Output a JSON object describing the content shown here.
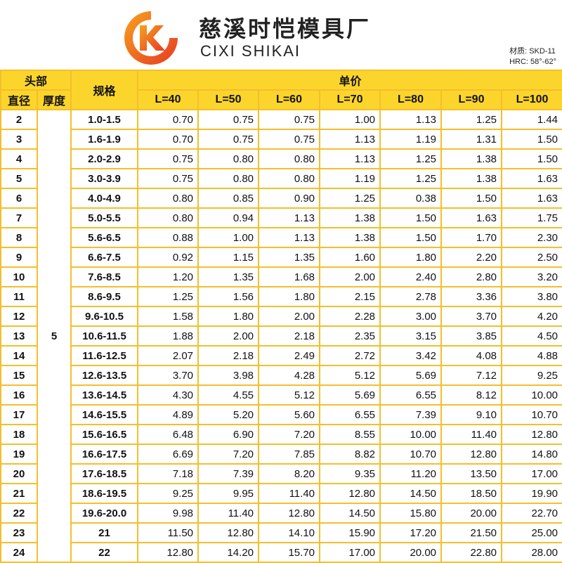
{
  "company": {
    "name_cn": "慈溪时恺模具厂",
    "name_en": "CIXI SHIKAI",
    "logo_letter": "K",
    "brand_orange": "#f28a1c",
    "brand_red": "#e63a23"
  },
  "specs": {
    "material": "材质: SKD-11",
    "hardness": "HRC: 58°-62°"
  },
  "table": {
    "header_group_head": "头部",
    "header_diameter": "直径",
    "header_thickness": "厚度",
    "header_spec": "规格",
    "header_price": "单价",
    "lengths": [
      "L=40",
      "L=50",
      "L=60",
      "L=70",
      "L=80",
      "L=90",
      "L=100"
    ],
    "thickness_value": "5",
    "rows": [
      {
        "dia": "2",
        "spec": "1.0-1.5",
        "prices": [
          "0.70",
          "0.75",
          "0.75",
          "1.00",
          "1.13",
          "1.25",
          "1.44"
        ]
      },
      {
        "dia": "3",
        "spec": "1.6-1.9",
        "prices": [
          "0.70",
          "0.75",
          "0.75",
          "1.13",
          "1.19",
          "1.31",
          "1.50"
        ]
      },
      {
        "dia": "4",
        "spec": "2.0-2.9",
        "prices": [
          "0.75",
          "0.80",
          "0.80",
          "1.13",
          "1.25",
          "1.38",
          "1.50"
        ]
      },
      {
        "dia": "5",
        "spec": "3.0-3.9",
        "prices": [
          "0.75",
          "0.80",
          "0.80",
          "1.19",
          "1.25",
          "1.38",
          "1.63"
        ]
      },
      {
        "dia": "6",
        "spec": "4.0-4.9",
        "prices": [
          "0.80",
          "0.85",
          "0.90",
          "1.25",
          "0.38",
          "1.50",
          "1.63"
        ]
      },
      {
        "dia": "7",
        "spec": "5.0-5.5",
        "prices": [
          "0.80",
          "0.94",
          "1.13",
          "1.38",
          "1.50",
          "1.63",
          "1.75"
        ]
      },
      {
        "dia": "8",
        "spec": "5.6-6.5",
        "prices": [
          "0.88",
          "1.00",
          "1.13",
          "1.38",
          "1.50",
          "1.70",
          "2.30"
        ]
      },
      {
        "dia": "9",
        "spec": "6.6-7.5",
        "prices": [
          "0.92",
          "1.15",
          "1.35",
          "1.60",
          "1.80",
          "2.20",
          "2.50"
        ]
      },
      {
        "dia": "10",
        "spec": "7.6-8.5",
        "prices": [
          "1.20",
          "1.35",
          "1.68",
          "2.00",
          "2.40",
          "2.80",
          "3.20"
        ]
      },
      {
        "dia": "11",
        "spec": "8.6-9.5",
        "prices": [
          "1.25",
          "1.56",
          "1.80",
          "2.15",
          "2.78",
          "3.36",
          "3.80"
        ]
      },
      {
        "dia": "12",
        "spec": "9.6-10.5",
        "prices": [
          "1.58",
          "1.80",
          "2.00",
          "2.28",
          "3.00",
          "3.70",
          "4.20"
        ]
      },
      {
        "dia": "13",
        "spec": "10.6-11.5",
        "prices": [
          "1.88",
          "2.00",
          "2.18",
          "2.35",
          "3.15",
          "3.85",
          "4.50"
        ]
      },
      {
        "dia": "14",
        "spec": "11.6-12.5",
        "prices": [
          "2.07",
          "2.18",
          "2.49",
          "2.72",
          "3.42",
          "4.08",
          "4.88"
        ]
      },
      {
        "dia": "15",
        "spec": "12.6-13.5",
        "prices": [
          "3.70",
          "3.98",
          "4.28",
          "5.12",
          "5.69",
          "7.12",
          "9.25"
        ]
      },
      {
        "dia": "16",
        "spec": "13.6-14.5",
        "prices": [
          "4.30",
          "4.55",
          "5.12",
          "5.69",
          "6.55",
          "8.12",
          "10.00"
        ]
      },
      {
        "dia": "17",
        "spec": "14.6-15.5",
        "prices": [
          "4.89",
          "5.20",
          "5.60",
          "6.55",
          "7.39",
          "9.10",
          "10.70"
        ]
      },
      {
        "dia": "18",
        "spec": "15.6-16.5",
        "prices": [
          "6.48",
          "6.90",
          "7.20",
          "8.55",
          "10.00",
          "11.40",
          "12.80"
        ]
      },
      {
        "dia": "19",
        "spec": "16.6-17.5",
        "prices": [
          "6.69",
          "7.20",
          "7.85",
          "8.82",
          "10.70",
          "12.80",
          "14.80"
        ]
      },
      {
        "dia": "20",
        "spec": "17.6-18.5",
        "prices": [
          "7.18",
          "7.39",
          "8.20",
          "9.35",
          "11.20",
          "13.50",
          "17.00"
        ]
      },
      {
        "dia": "21",
        "spec": "18.6-19.5",
        "prices": [
          "9.25",
          "9.95",
          "11.40",
          "12.80",
          "14.50",
          "18.50",
          "19.90"
        ]
      },
      {
        "dia": "22",
        "spec": "19.6-20.0",
        "prices": [
          "9.98",
          "11.40",
          "12.80",
          "14.50",
          "15.80",
          "20.00",
          "22.70"
        ]
      },
      {
        "dia": "23",
        "spec": "21",
        "prices": [
          "11.50",
          "12.80",
          "14.10",
          "15.90",
          "17.20",
          "21.50",
          "25.00"
        ]
      },
      {
        "dia": "24",
        "spec": "22",
        "prices": [
          "12.80",
          "14.20",
          "15.70",
          "17.00",
          "20.00",
          "22.80",
          "28.00"
        ]
      }
    ]
  }
}
